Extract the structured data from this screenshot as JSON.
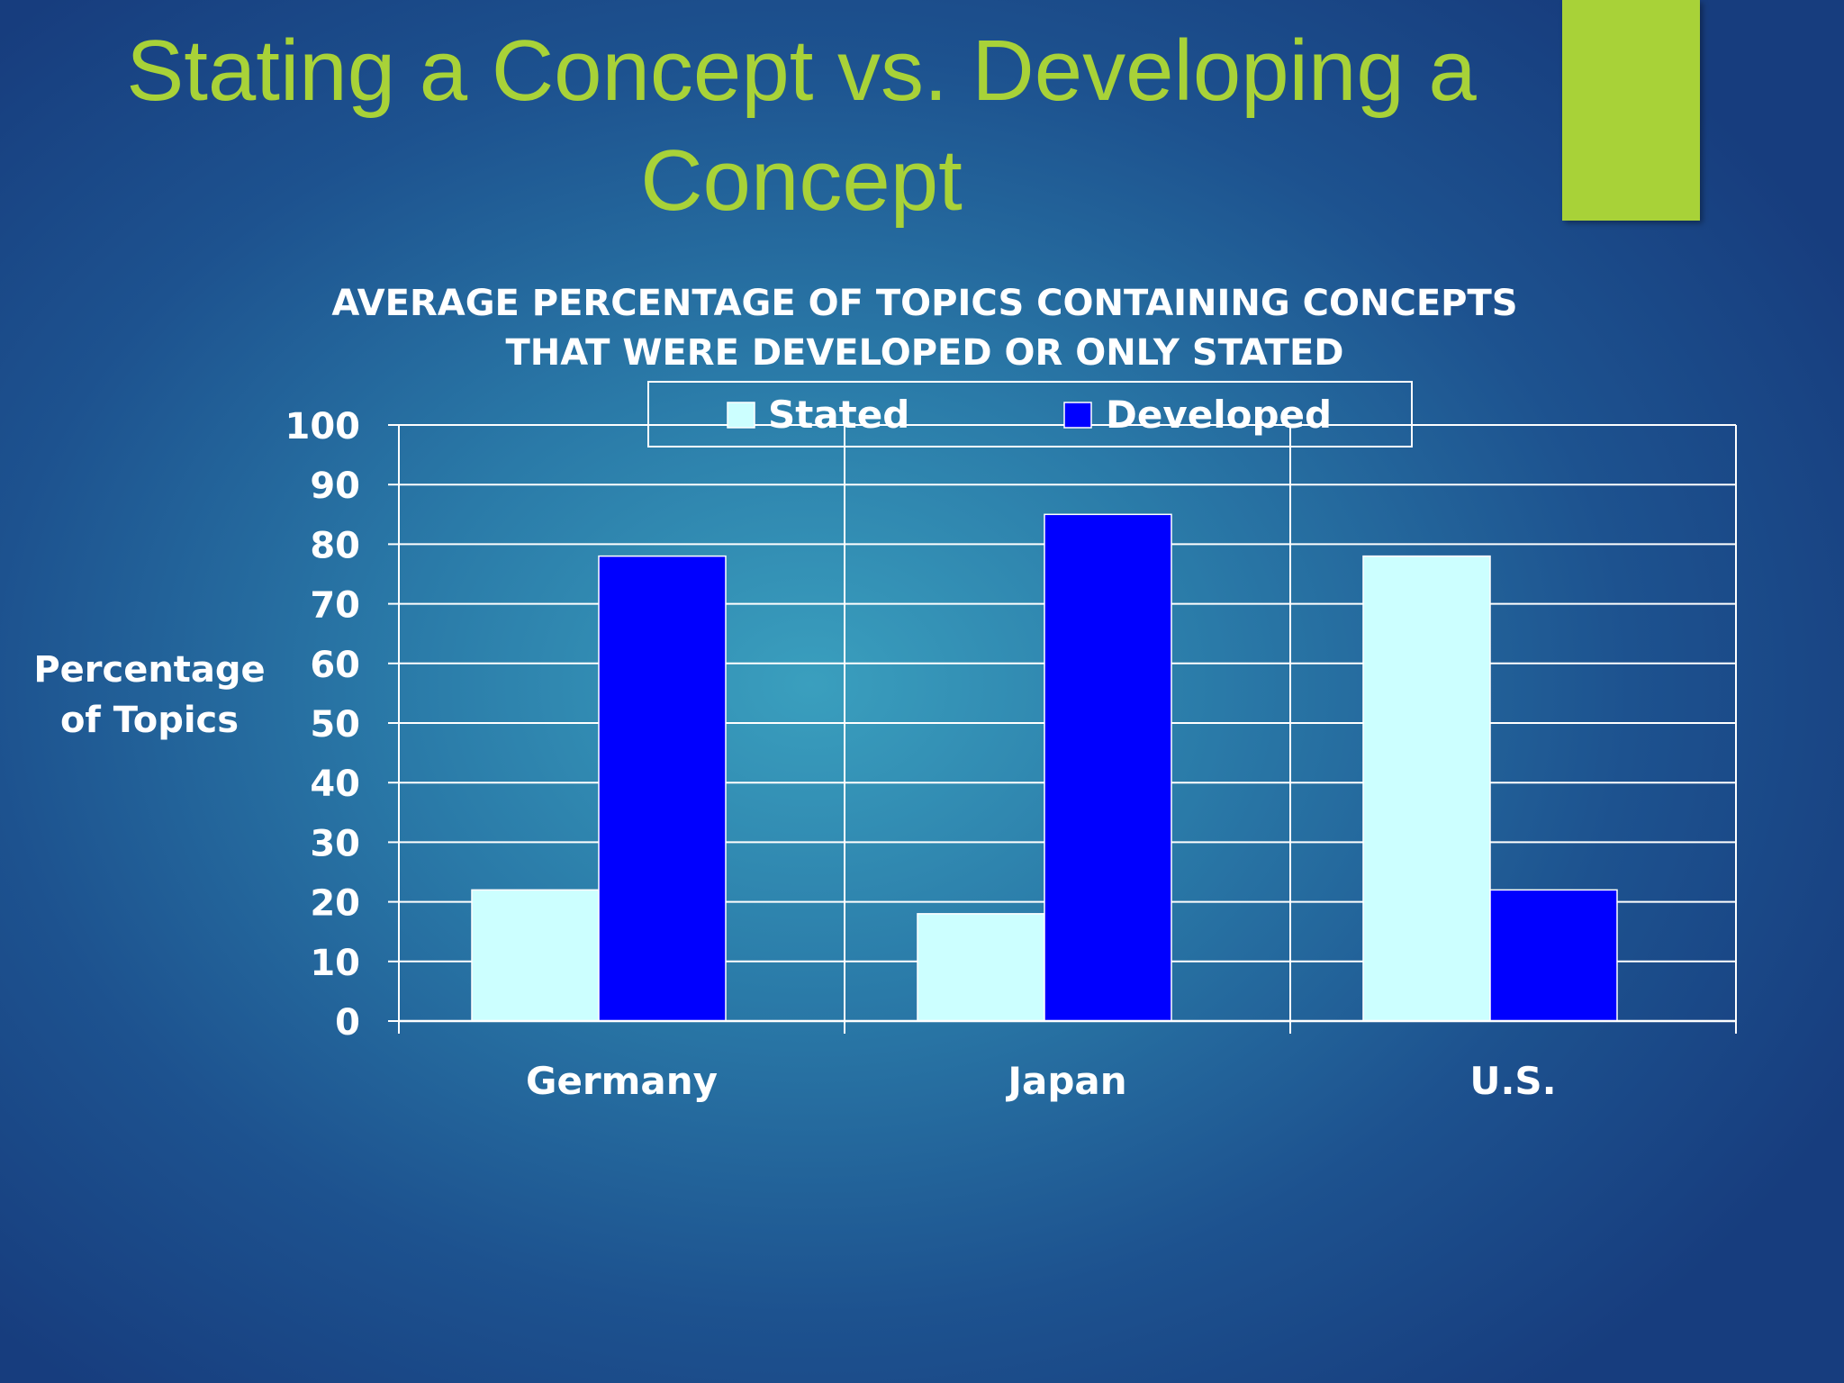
{
  "slide": {
    "title": "Stating a Concept vs. Developing a Concept"
  },
  "colors": {
    "title": "#a8d238",
    "accent_bar": "#a8d238",
    "stated": "#ccffff",
    "developed": "#0000ff",
    "grid": "#ffffff"
  },
  "chart_data": {
    "type": "bar",
    "title_lines": [
      "AVERAGE PERCENTAGE OF TOPICS CONTAINING CONCEPTS",
      "THAT WERE DEVELOPED OR ONLY STATED"
    ],
    "ylabel_lines": [
      "Percentage",
      "of Topics"
    ],
    "xlabel": "",
    "categories": [
      "Germany",
      "Japan",
      "U.S."
    ],
    "series": [
      {
        "name": "Stated",
        "color": "#ccffff",
        "values": [
          22,
          18,
          78
        ]
      },
      {
        "name": "Developed",
        "color": "#0000ff",
        "values": [
          78,
          85,
          22
        ]
      }
    ],
    "ylim": [
      0,
      100
    ],
    "yticks": [
      0,
      10,
      20,
      30,
      40,
      50,
      60,
      70,
      80,
      90,
      100
    ],
    "grid": true,
    "legend_position": "top-center"
  }
}
